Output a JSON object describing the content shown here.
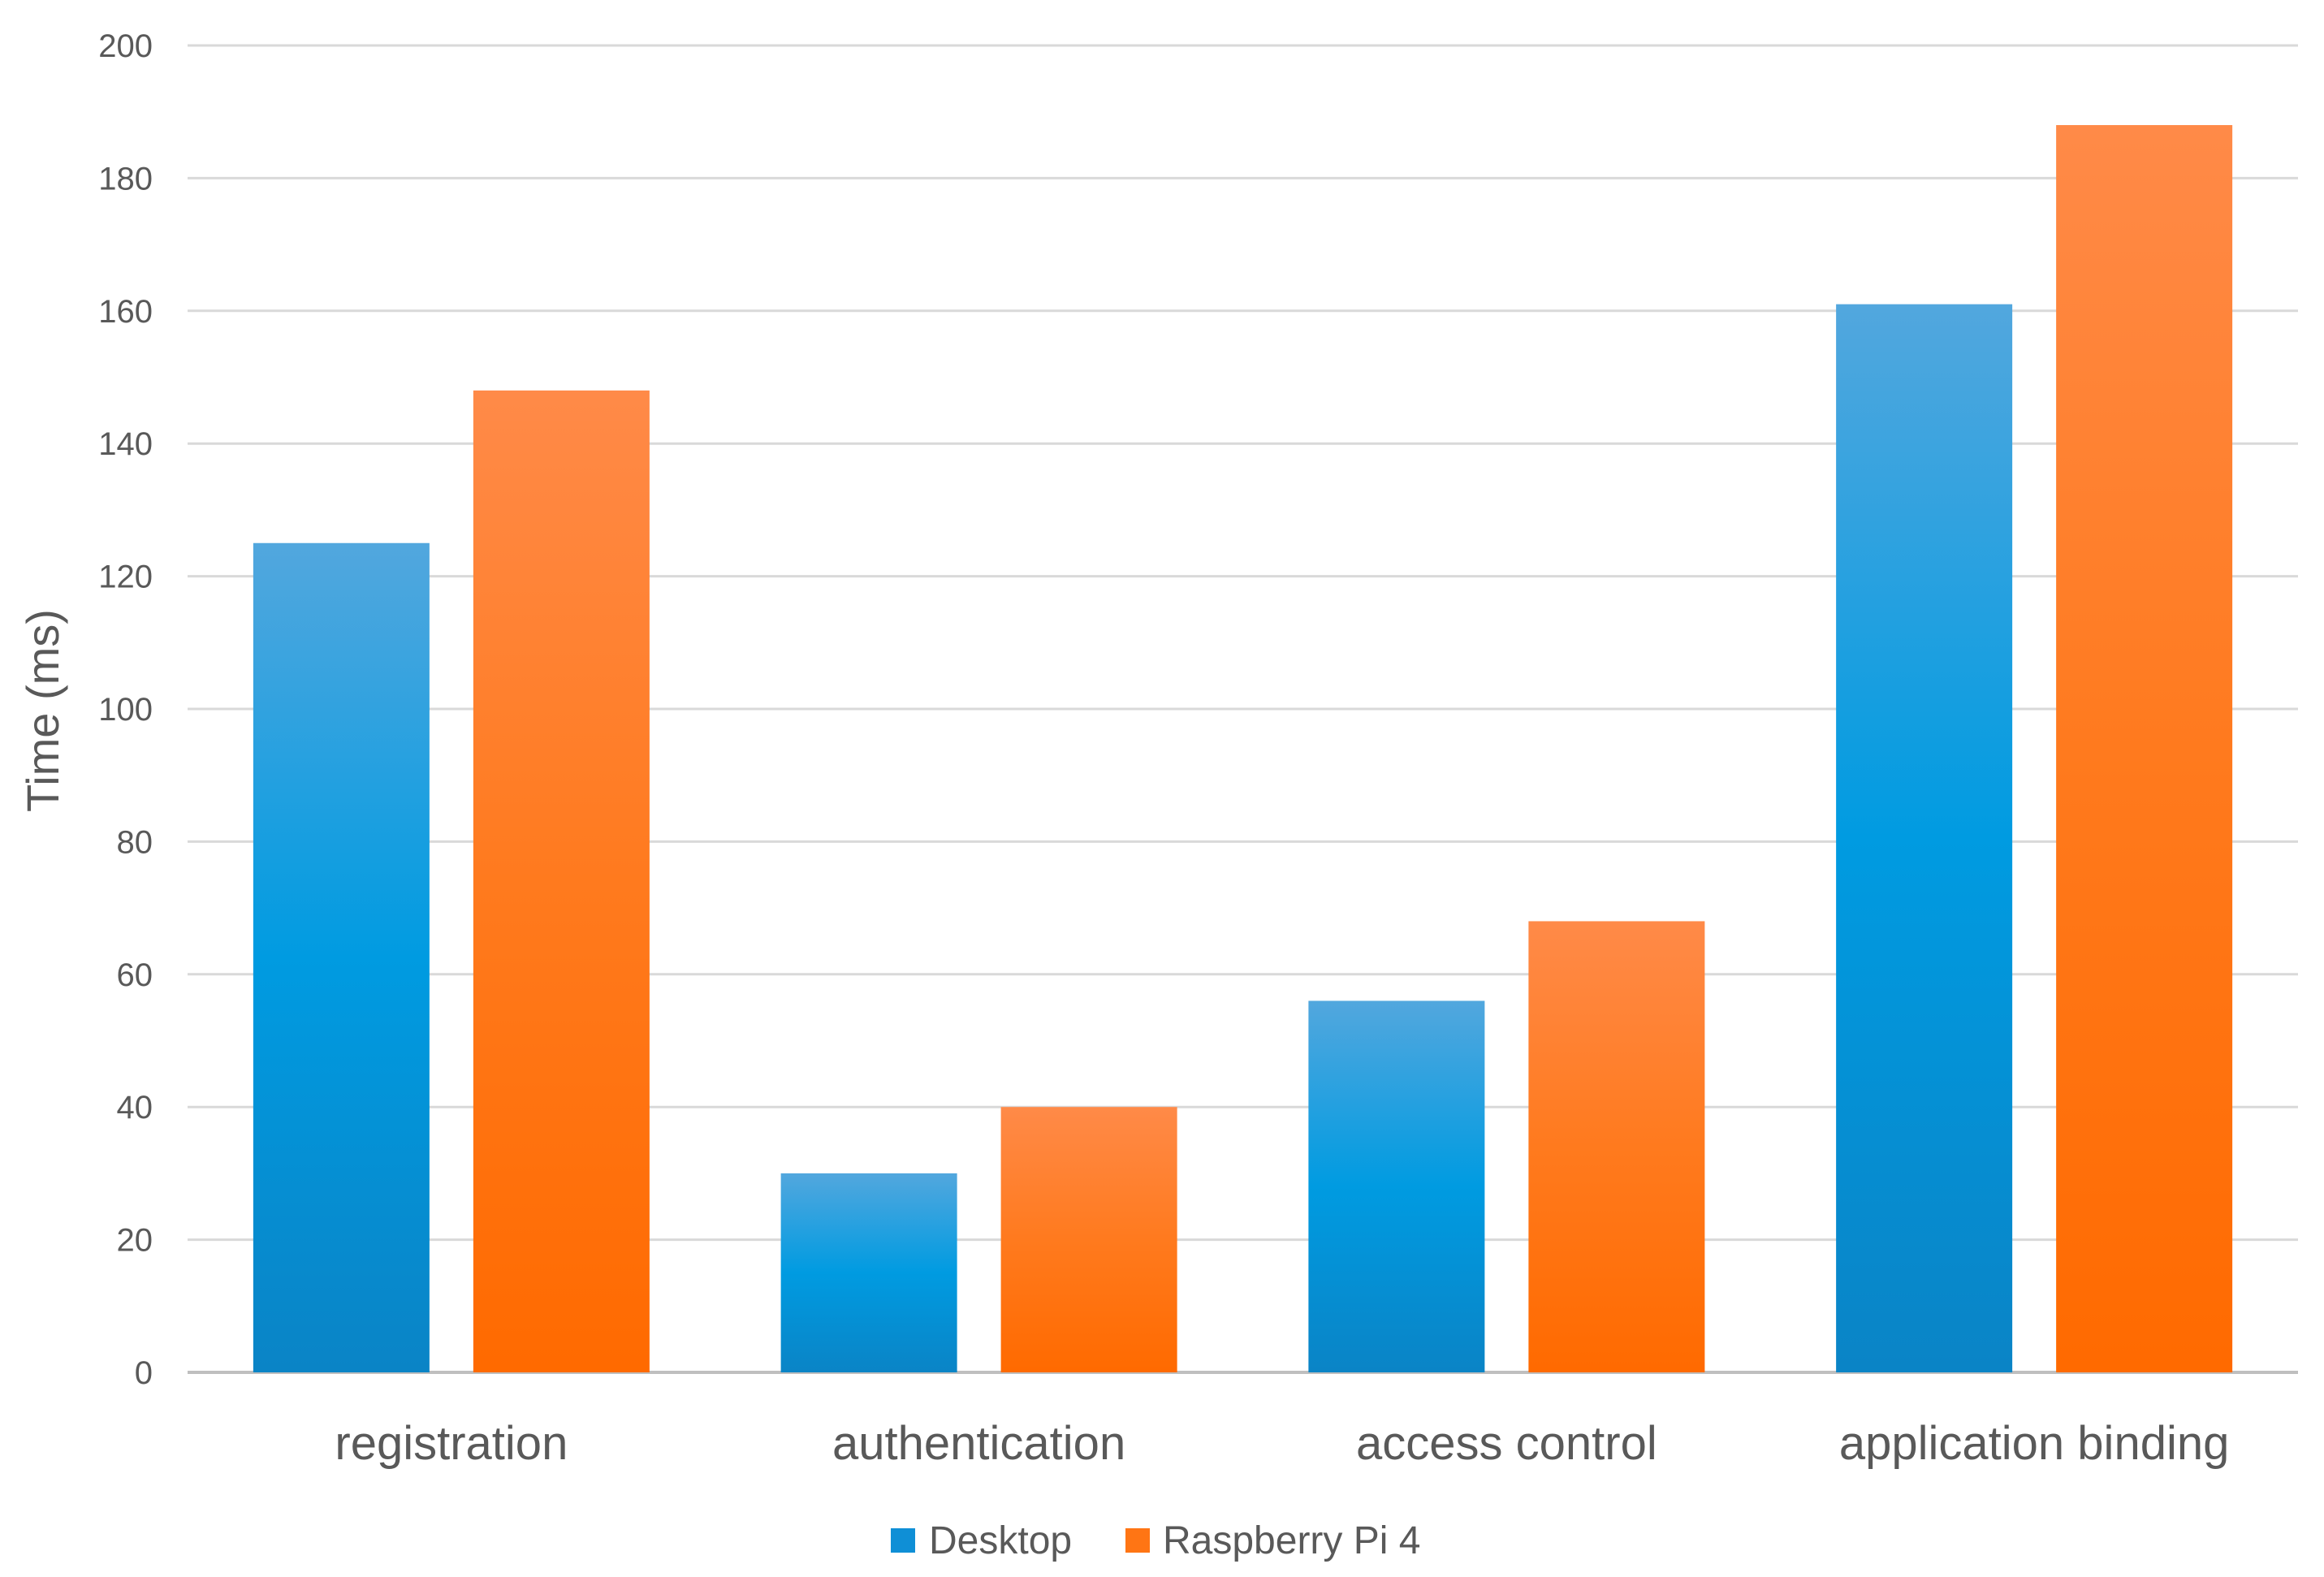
{
  "chart_data": {
    "type": "bar",
    "title": "",
    "xlabel": "",
    "ylabel": "Time (ms)",
    "ylim": [
      0,
      200
    ],
    "yticks": [
      0,
      20,
      40,
      60,
      80,
      100,
      120,
      140,
      160,
      180,
      200
    ],
    "grid": true,
    "legend_position": "bottom",
    "categories": [
      "registration",
      "authentication",
      "access control",
      "application binding"
    ],
    "series": [
      {
        "name": "Desktop",
        "values": [
          125,
          30,
          56,
          161
        ],
        "color": "#0f8fd6"
      },
      {
        "name": "Raspberry Pi 4",
        "values": [
          148,
          40,
          68,
          188
        ],
        "color": "#ff7514"
      }
    ]
  }
}
